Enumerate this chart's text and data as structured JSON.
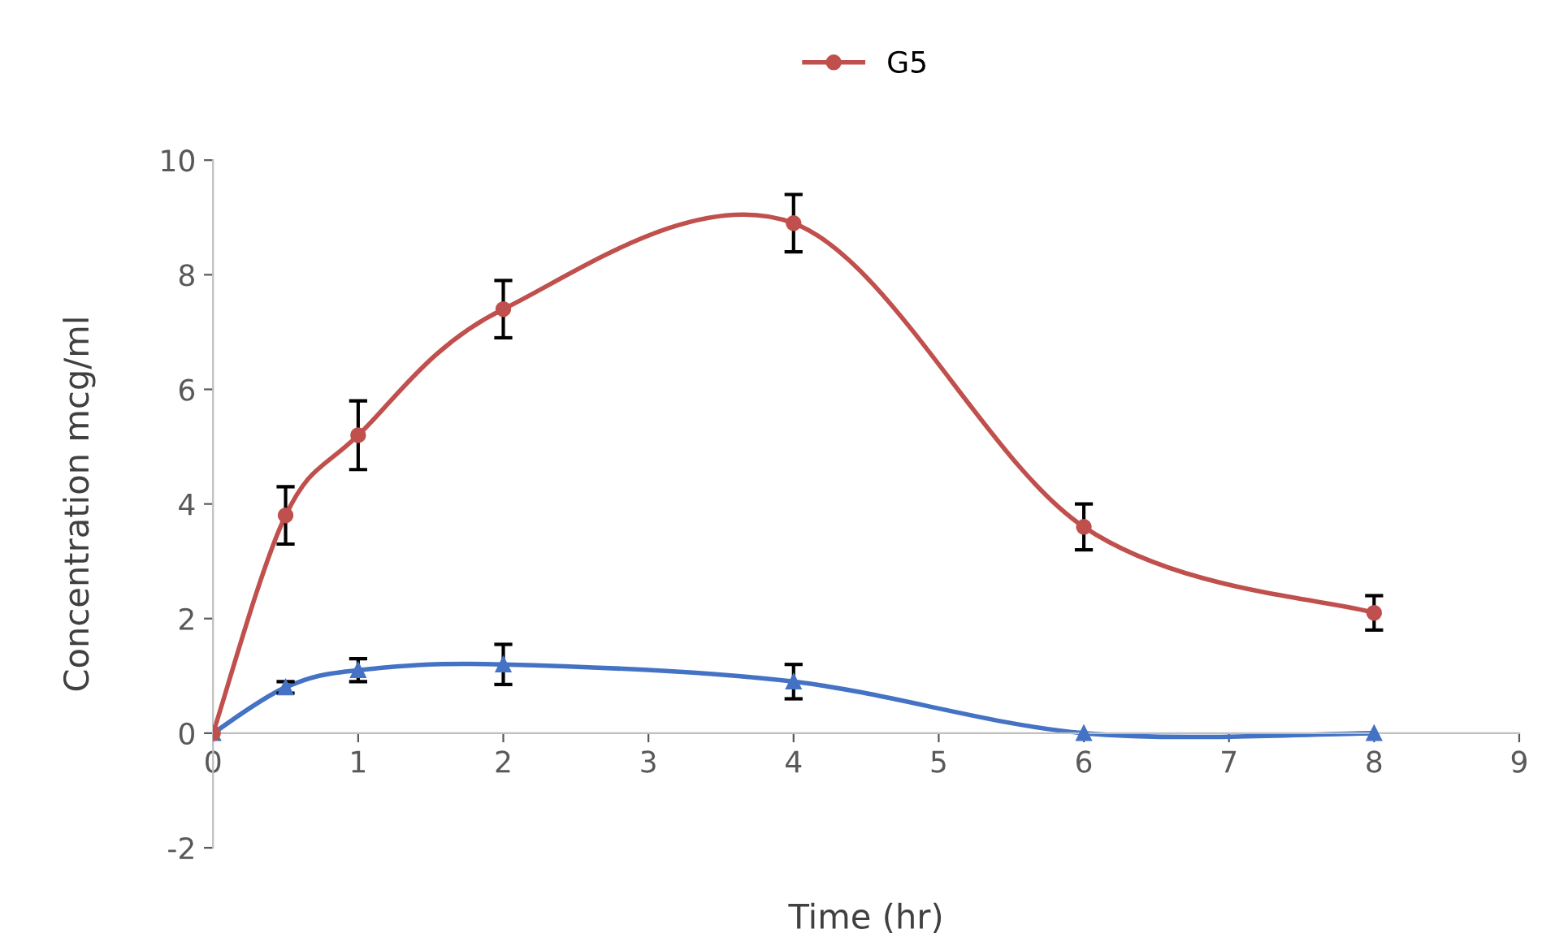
{
  "chart_data": {
    "type": "line",
    "xlabel": "Time (hr)",
    "ylabel": "Concentration mcg/ml",
    "xlim": [
      0,
      9
    ],
    "xticks": [
      0,
      1,
      2,
      3,
      4,
      5,
      6,
      7,
      8,
      9
    ],
    "ylim": [
      -2,
      10
    ],
    "yticks": [
      -2,
      0,
      2,
      4,
      6,
      8,
      10
    ],
    "grid": false,
    "legend": "top",
    "line_style": "solid",
    "series": [
      {
        "color": "#4472c4",
        "marker": "triangle",
        "x": [
          0,
          0.5,
          1,
          2,
          4,
          6,
          8
        ],
        "values": [
          0,
          0.8,
          1.1,
          1.2,
          0.9,
          0,
          0
        ],
        "errors": [
          null,
          0.1,
          0.2,
          0.35,
          0.3,
          null,
          null
        ]
      },
      {
        "name": "G5",
        "color": "#c0504d",
        "marker": "circle",
        "x": [
          0,
          0.5,
          1,
          2,
          4,
          6,
          8
        ],
        "values": [
          0,
          3.8,
          5.2,
          7.4,
          8.9,
          3.6,
          2.1
        ],
        "errors": [
          null,
          0.5,
          0.6,
          0.5,
          0.5,
          0.4,
          0.3
        ]
      }
    ]
  }
}
